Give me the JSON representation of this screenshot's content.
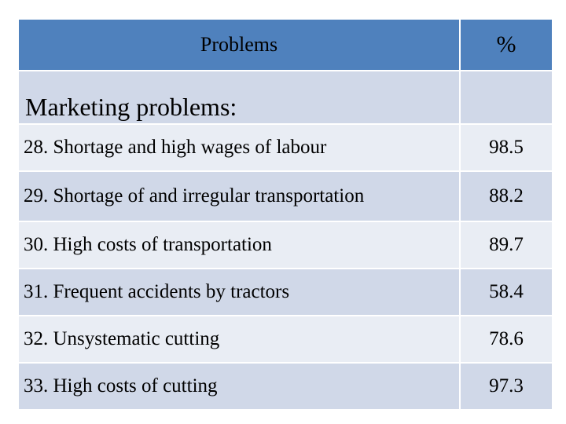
{
  "table": {
    "header": {
      "problem": "Problems",
      "percent": "%"
    },
    "section_title": "Marketing problems:",
    "rows": [
      {
        "problem": "28. Shortage and high wages of labour",
        "percent": "98.5"
      },
      {
        "problem": "29. Shortage of and irregular transportation",
        "percent": "88.2"
      },
      {
        "problem": "30. High costs of transportation",
        "percent": "89.7"
      },
      {
        "problem": "31. Frequent accidents  by tractors",
        "percent": "58.4"
      },
      {
        "problem": "32. Unsystematic cutting",
        "percent": "78.6"
      },
      {
        "problem": "33. High costs of cutting",
        "percent": "97.3"
      }
    ],
    "colors": {
      "header_bg": "#4f81bd",
      "band_dark": "#d0d8e8",
      "band_light": "#e9edf4"
    }
  }
}
